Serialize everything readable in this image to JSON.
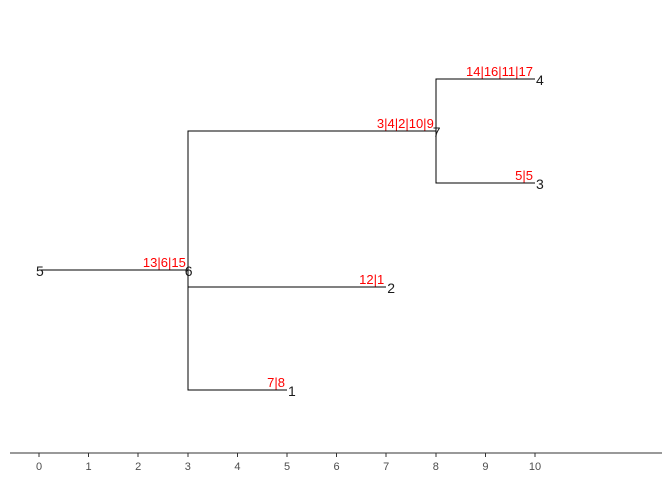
{
  "colors": {
    "edge": "#000000",
    "edge_label": "#ff0000",
    "node_label": "#1a1a1a",
    "axis": "#333333",
    "tick_label": "#4d4d4d"
  },
  "chart_data": {
    "type": "tree",
    "xlim": [
      0,
      10
    ],
    "x_ticks": [
      "0",
      "1",
      "2",
      "3",
      "4",
      "5",
      "6",
      "7",
      "8",
      "9",
      "10"
    ],
    "nodes": [
      {
        "id": "5",
        "x": 0
      },
      {
        "id": "6",
        "x": 3
      },
      {
        "id": "7",
        "x": 8
      },
      {
        "id": "4",
        "x": 10
      },
      {
        "id": "3",
        "x": 10
      },
      {
        "id": "2",
        "x": 7
      },
      {
        "id": "1",
        "x": 5
      }
    ],
    "edges": [
      {
        "from": "5",
        "to": "6",
        "label": "13|6|15"
      },
      {
        "from": "6",
        "to": "7",
        "label": "3|4|2|10|9"
      },
      {
        "from": "7",
        "to": "4",
        "label": "14|16|11|17"
      },
      {
        "from": "7",
        "to": "3",
        "label": "5|5"
      },
      {
        "from": "6",
        "to": "2",
        "label": "12|1"
      },
      {
        "from": "6",
        "to": "1",
        "label": "7|8"
      }
    ]
  }
}
